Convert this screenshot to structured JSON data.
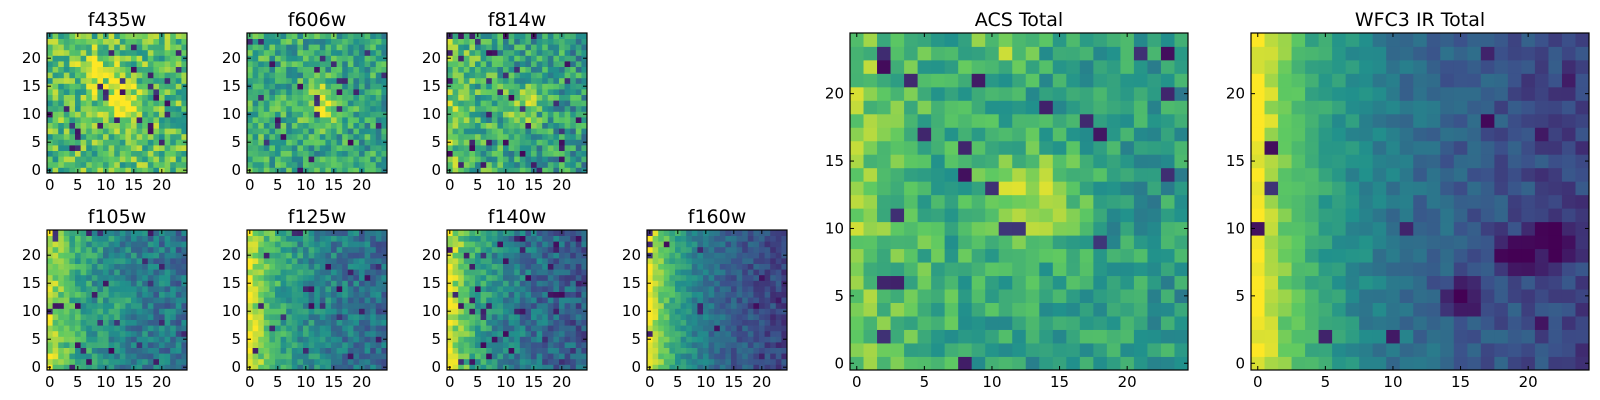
{
  "figure": {
    "colormap": "viridis",
    "stop_colors": [
      "#440154",
      "#3b528b",
      "#21918c",
      "#5ec962",
      "#fde725"
    ]
  },
  "chart_data": [
    {
      "type": "heatmap",
      "title": "f435w",
      "grid": [
        25,
        25
      ],
      "xlim": [
        0,
        24
      ],
      "ylim": [
        0,
        24
      ],
      "xticks": [
        0,
        5,
        10,
        15,
        20
      ],
      "yticks": [
        0,
        5,
        10,
        15,
        20
      ],
      "pattern": {
        "bright_spots": [
          {
            "x": 13,
            "y": 12,
            "level": 0.35,
            "spread": 2.5
          },
          {
            "x": 9,
            "y": 18,
            "level": 0.15,
            "spread": 3
          }
        ],
        "left_gradient": 0.0,
        "base": 0.7,
        "noise": 0.22,
        "dark_pixels": 0.05
      }
    },
    {
      "type": "heatmap",
      "title": "f606w",
      "grid": [
        25,
        25
      ],
      "xlim": [
        0,
        24
      ],
      "ylim": [
        0,
        24
      ],
      "xticks": [
        0,
        5,
        10,
        15,
        20
      ],
      "yticks": [
        0,
        5,
        10,
        15,
        20
      ],
      "pattern": {
        "bright_spots": [
          {
            "x": 13,
            "y": 12,
            "level": 0.35,
            "spread": 2.5
          }
        ],
        "left_gradient": 0.05,
        "base": 0.6,
        "noise": 0.2,
        "dark_pixels": 0.04
      }
    },
    {
      "type": "heatmap",
      "title": "f814w",
      "grid": [
        25,
        25
      ],
      "xlim": [
        0,
        24
      ],
      "ylim": [
        0,
        24
      ],
      "xticks": [
        0,
        5,
        10,
        15,
        20
      ],
      "yticks": [
        0,
        5,
        10,
        15,
        20
      ],
      "pattern": {
        "bright_spots": [
          {
            "x": 13,
            "y": 12,
            "level": 0.25,
            "spread": 2.5
          }
        ],
        "left_gradient": 0.18,
        "base": 0.6,
        "noise": 0.22,
        "dark_pixels": 0.05
      }
    },
    {
      "type": "heatmap",
      "title": "f105w",
      "grid": [
        25,
        25
      ],
      "xlim": [
        0,
        24
      ],
      "ylim": [
        0,
        24
      ],
      "xticks": [
        0,
        5,
        10,
        15,
        20
      ],
      "yticks": [
        0,
        5,
        10,
        15,
        20
      ],
      "pattern": {
        "bright_spots": [
          {
            "x": 13,
            "y": 12,
            "level": 0.15,
            "spread": 2
          }
        ],
        "left_gradient": 0.4,
        "base": 0.5,
        "noise": 0.15,
        "dark_pixels": 0.04
      }
    },
    {
      "type": "heatmap",
      "title": "f125w",
      "grid": [
        25,
        25
      ],
      "xlim": [
        0,
        24
      ],
      "ylim": [
        0,
        24
      ],
      "xticks": [
        0,
        5,
        10,
        15,
        20
      ],
      "yticks": [
        0,
        5,
        10,
        15,
        20
      ],
      "pattern": {
        "bright_spots": [],
        "left_gradient": 0.45,
        "base": 0.5,
        "noise": 0.15,
        "dark_pixels": 0.04
      }
    },
    {
      "type": "heatmap",
      "title": "f140w",
      "grid": [
        25,
        25
      ],
      "xlim": [
        0,
        24
      ],
      "ylim": [
        0,
        24
      ],
      "xticks": [
        0,
        5,
        10,
        15,
        20
      ],
      "yticks": [
        0,
        5,
        10,
        15,
        20
      ],
      "pattern": {
        "bright_spots": [],
        "left_gradient": 0.5,
        "base": 0.45,
        "noise": 0.15,
        "dark_pixels": 0.06
      }
    },
    {
      "type": "heatmap",
      "title": "f160w",
      "grid": [
        25,
        25
      ],
      "xlim": [
        0,
        24
      ],
      "ylim": [
        0,
        24
      ],
      "xticks": [
        0,
        5,
        10,
        15,
        20
      ],
      "yticks": [
        0,
        5,
        10,
        15,
        20
      ],
      "pattern": {
        "bright_spots": [],
        "left_gradient": 0.6,
        "base": 0.4,
        "noise": 0.1,
        "dark_pixels": 0.03
      }
    },
    {
      "type": "heatmap",
      "title": "ACS Total",
      "grid": [
        25,
        25
      ],
      "xlim": [
        0,
        24
      ],
      "ylim": [
        0,
        24
      ],
      "xticks": [
        0,
        5,
        10,
        15,
        20
      ],
      "yticks": [
        0,
        5,
        10,
        15,
        20
      ],
      "pattern": {
        "bright_spots": [
          {
            "x": 13,
            "y": 12,
            "level": 0.35,
            "spread": 2.5
          },
          {
            "x": 11,
            "y": 24,
            "level": 0.25,
            "spread": 1.5
          }
        ],
        "left_gradient": 0.2,
        "base": 0.6,
        "noise": 0.15,
        "dark_pixels": 0.04
      }
    },
    {
      "type": "heatmap",
      "title": "WFC3 IR Total",
      "grid": [
        25,
        25
      ],
      "xlim": [
        0,
        24
      ],
      "ylim": [
        0,
        24
      ],
      "xticks": [
        0,
        5,
        10,
        15,
        20
      ],
      "yticks": [
        0,
        5,
        10,
        15,
        20
      ],
      "pattern": {
        "bright_spots": [],
        "left_gradient": 0.6,
        "base": 0.4,
        "noise": 0.08,
        "dark_pixels": 0.02,
        "dark_clumps": [
          {
            "x": 22,
            "y": 9
          },
          {
            "x": 19,
            "y": 8
          },
          {
            "x": 15,
            "y": 5
          }
        ]
      }
    }
  ]
}
